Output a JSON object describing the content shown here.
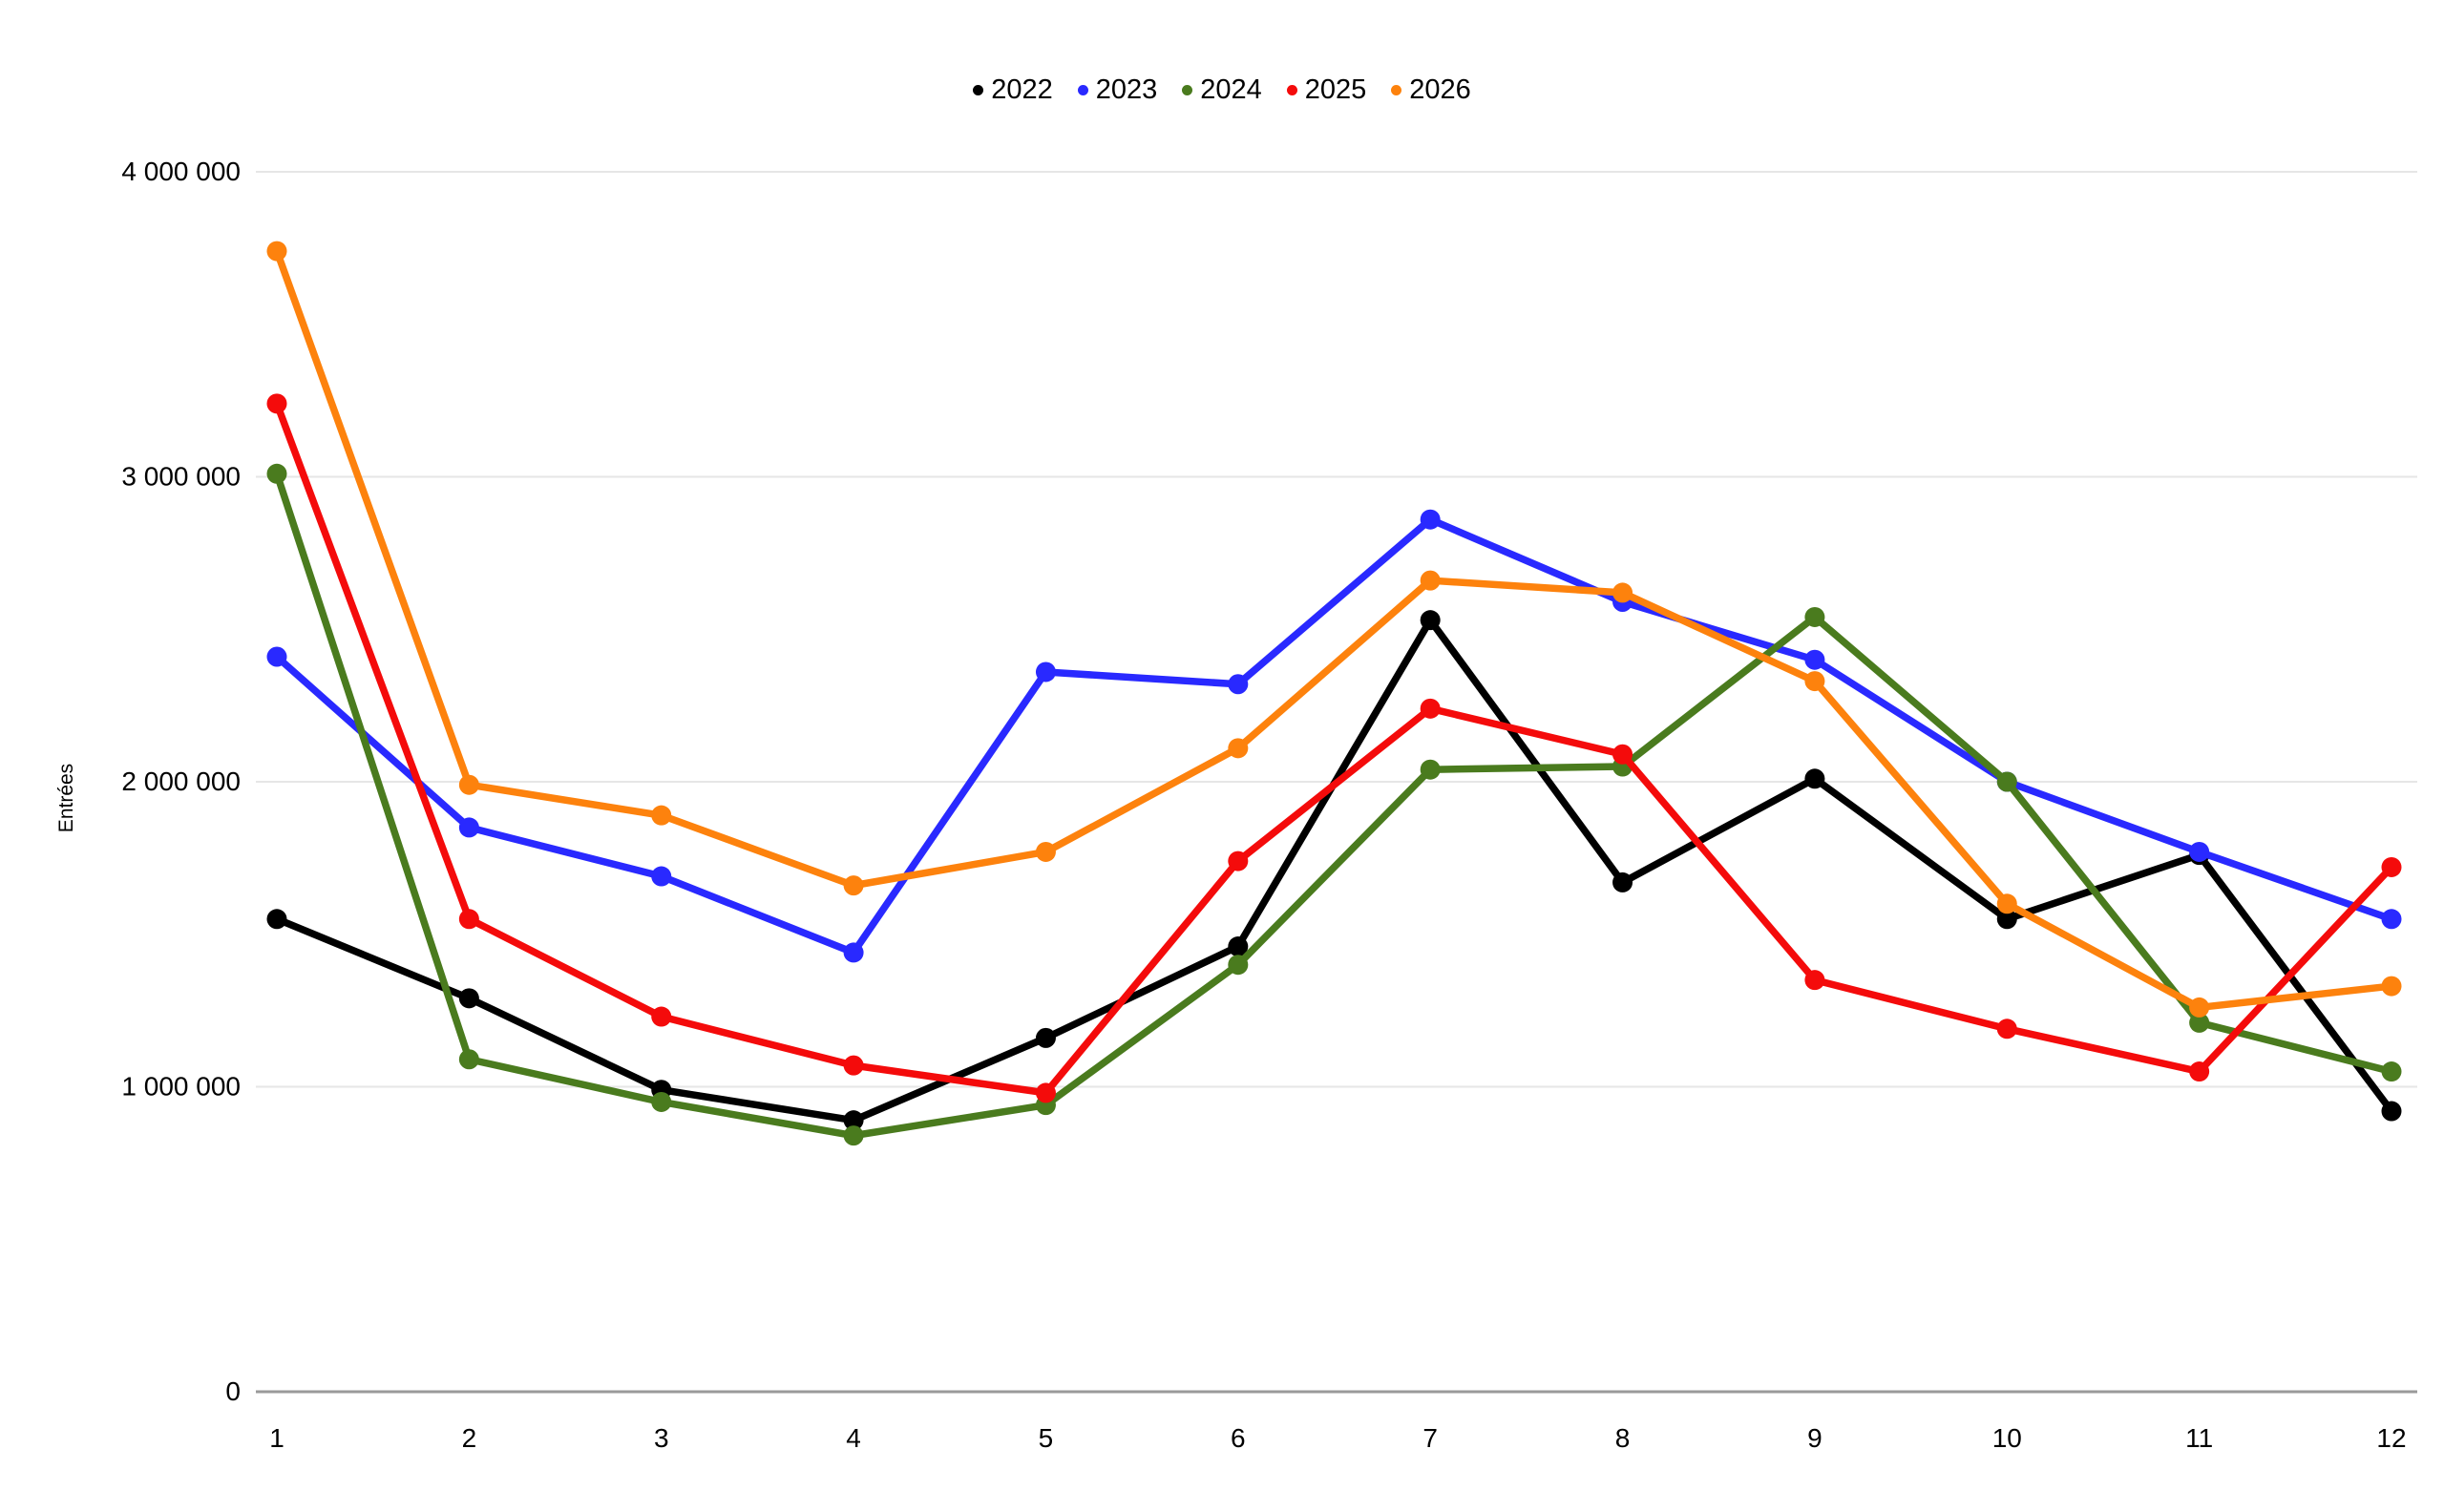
{
  "chart_data": {
    "type": "line",
    "title": "",
    "xlabel": "",
    "ylabel": "Entrées",
    "x": [
      1,
      2,
      3,
      4,
      5,
      6,
      7,
      8,
      9,
      10,
      11,
      12
    ],
    "ylim": [
      0,
      4000000
    ],
    "ytick_values": [
      0,
      1000000,
      2000000,
      3000000,
      4000000
    ],
    "ytick_labels": [
      "0",
      "1 000 000",
      "2 000 000",
      "3 000 000",
      "4 000 000"
    ],
    "grid": true,
    "legend_position": "top-center",
    "series": [
      {
        "name": "2022",
        "color": "#000000",
        "values": [
          1550000,
          1290000,
          990000,
          890000,
          1160000,
          1460000,
          2530000,
          1670000,
          2010000,
          1550000,
          1760000,
          920000
        ]
      },
      {
        "name": "2023",
        "color": "#2929ff",
        "values": [
          2410000,
          1850000,
          1690000,
          1440000,
          2360000,
          2320000,
          2860000,
          2590000,
          2400000,
          2000000,
          1770000,
          1550000
        ]
      },
      {
        "name": "2024",
        "color": "#4a7b1e",
        "values": [
          3010000,
          1090000,
          950000,
          840000,
          940000,
          1400000,
          2040000,
          2050000,
          2540000,
          2000000,
          1210000,
          1050000
        ]
      },
      {
        "name": "2025",
        "color": "#f40b0b",
        "values": [
          3240000,
          1550000,
          1230000,
          1070000,
          980000,
          1740000,
          2240000,
          2090000,
          1350000,
          1190000,
          1050000,
          1720000
        ]
      },
      {
        "name": "2026",
        "color": "#fd820d",
        "values": [
          3740000,
          1990000,
          1890000,
          1660000,
          1770000,
          2110000,
          2660000,
          2620000,
          2330000,
          1600000,
          1260000,
          1330000
        ]
      }
    ],
    "colors": {
      "grid": "#e6e6e6",
      "axis": "#9a9a9a",
      "text": "#000000",
      "background": "#ffffff"
    }
  }
}
